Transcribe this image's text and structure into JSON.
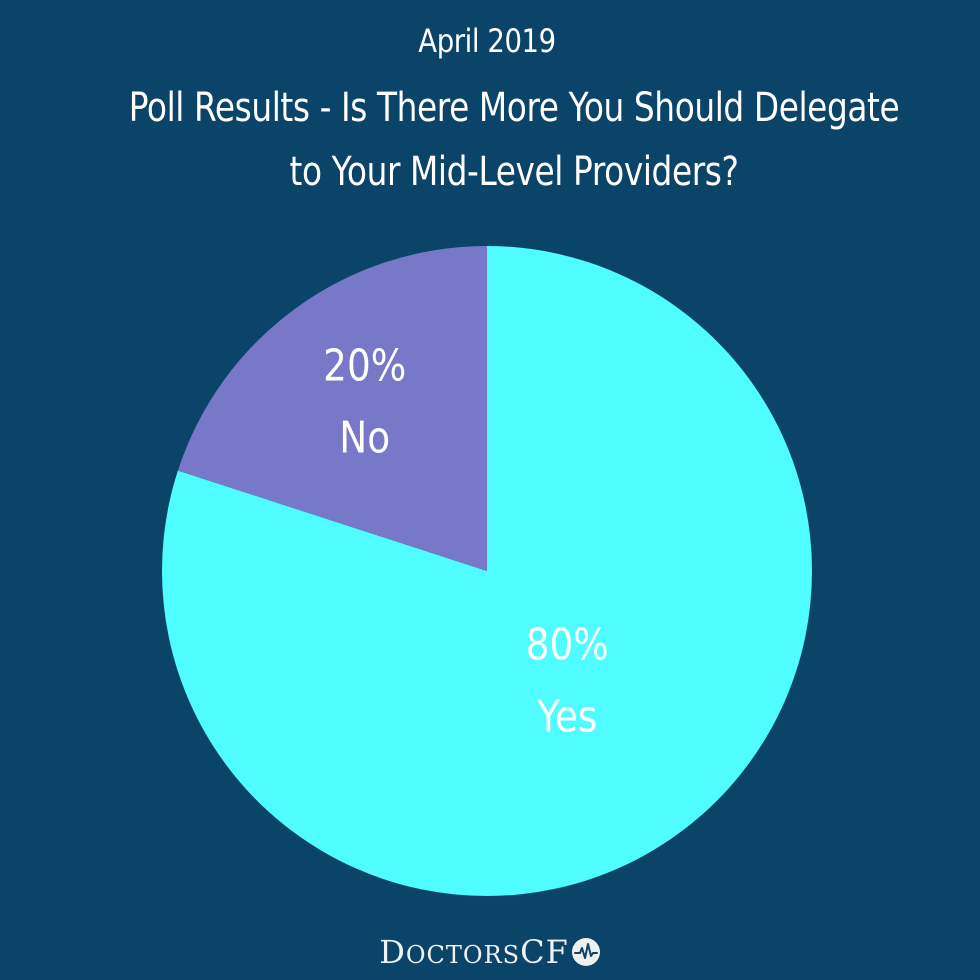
{
  "header": {
    "date": "April 2019",
    "title_line1": "Poll Results - Is There More You Should Delegate",
    "title_line2": "to Your Mid-Level Providers?"
  },
  "chart_data": {
    "type": "pie",
    "title": "Poll Results - Is There More You Should Delegate to Your Mid-Level Providers?",
    "subtitle": "April 2019",
    "slices": [
      {
        "label": "Yes",
        "value": 80,
        "value_label": "80%",
        "color": "#4ffcff"
      },
      {
        "label": "No",
        "value": 20,
        "value_label": "20%",
        "color": "#7878c8"
      }
    ],
    "start_angle_deg": 0,
    "direction": "clockwise",
    "legend": "none"
  },
  "footer": {
    "brand_cap": "D",
    "brand_rest": "OCTORS",
    "brand_suffix": "CF",
    "logo_icon": "heartbeat-icon"
  },
  "colors": {
    "background": "#0b4469",
    "text": "#ffffff"
  }
}
